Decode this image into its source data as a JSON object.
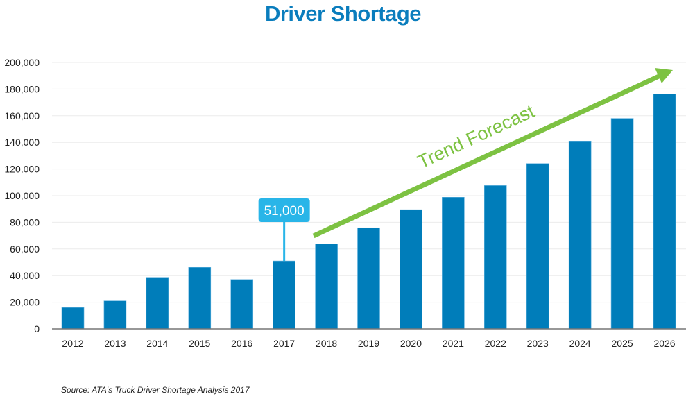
{
  "chart_data": {
    "type": "bar",
    "title": "Driver Shortage",
    "categories": [
      "2012",
      "2013",
      "2014",
      "2015",
      "2016",
      "2017",
      "2018",
      "2019",
      "2020",
      "2021",
      "2022",
      "2023",
      "2024",
      "2025",
      "2026"
    ],
    "values": [
      16000,
      21000,
      38700,
      46200,
      37100,
      51000,
      63700,
      75900,
      89500,
      98800,
      107600,
      124100,
      141000,
      158000,
      176200
    ],
    "ylim": [
      0,
      200000
    ],
    "yticks": [
      0,
      20000,
      40000,
      60000,
      80000,
      100000,
      120000,
      140000,
      160000,
      180000,
      200000
    ],
    "ytick_labels": [
      "0",
      "20,000",
      "40,000",
      "60,000",
      "80,000",
      "100,000",
      "120,000",
      "140,000",
      "160,000",
      "180,000",
      "200,000"
    ],
    "xlabel": "",
    "ylabel": "",
    "grid": true,
    "bar_color": "#007dba",
    "annotations": [
      {
        "label": "51,000",
        "category": "2017",
        "color": "#29b5e8"
      },
      {
        "label": "Trend Forecast",
        "type": "arrow",
        "from_category": "2018",
        "to_category": "2026",
        "color": "#7dc242"
      }
    ]
  },
  "source": "Source: ATA's Truck Driver Shortage Analysis 2017"
}
